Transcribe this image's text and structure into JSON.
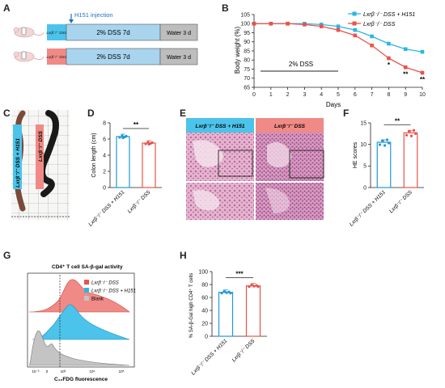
{
  "panels": {
    "A": "A",
    "B": "B",
    "C": "C",
    "D": "D",
    "E": "E",
    "F": "F",
    "G": "G",
    "H": "H"
  },
  "colors": {
    "cyan": "#29b6e6",
    "red": "#e8534a",
    "pink_fill": "#f08a86",
    "cyan_fill": "#4cc3ea",
    "grey_fill": "#c4c4c4",
    "bar_cyan": "#1f9ad6",
    "bar_red": "#e8534a",
    "box_blue": "#a8d4ee",
    "water_gray": "#bdbdbd"
  },
  "panelA": {
    "injection": "H151 injection",
    "row1_tag": "Lxrβ⁻/⁻ DSS",
    "row2_tag": "Lxrβ⁻/⁻ DSS",
    "dss_label": "2% DSS 7d",
    "water_label": "Water 3 d"
  },
  "chart_data": [
    {
      "type": "line",
      "panel": "B",
      "xlabel": "Days",
      "ylabel": "Body weight (%)",
      "x": [
        0,
        1,
        2,
        3,
        4,
        5,
        6,
        7,
        8,
        9,
        10
      ],
      "ylim": [
        65,
        105
      ],
      "yticks": [
        65,
        70,
        75,
        80,
        85,
        90,
        95,
        100,
        105
      ],
      "annotation": "2% DSS",
      "significance": [
        {
          "x": 8,
          "label": "*"
        },
        {
          "x": 9,
          "label": "**"
        },
        {
          "x": 10,
          "label": "**"
        }
      ],
      "series": [
        {
          "name": "Lxrβ⁻/⁻ DSS + H151",
          "color": "#29b6e6",
          "values": [
            100,
            100,
            100,
            100,
            99.5,
            98.5,
            96.5,
            93,
            89,
            86,
            84.5
          ]
        },
        {
          "name": "Lxrβ⁻/⁻ DSS",
          "color": "#e8534a",
          "values": [
            100,
            100,
            100,
            99.5,
            98.5,
            96.5,
            93.5,
            88,
            81,
            76,
            73
          ]
        }
      ]
    },
    {
      "type": "bar",
      "panel": "D",
      "ylabel": "Colon length (cm)",
      "ylim": [
        0,
        8
      ],
      "yticks": [
        0,
        2,
        4,
        6,
        8
      ],
      "categories": [
        "Lxrβ⁻/⁻ DSS + H151",
        "Lxrβ⁻/⁻ DSS"
      ],
      "values": [
        6.3,
        5.5
      ],
      "significance": "**"
    },
    {
      "type": "bar",
      "panel": "F",
      "ylabel": "HE scores",
      "ylim": [
        0,
        15
      ],
      "yticks": [
        0,
        5,
        10,
        15
      ],
      "categories": [
        "Lxrβ⁻/⁻ DSS + H151",
        "Lxrβ⁻/⁻ DSS"
      ],
      "values": [
        10.5,
        12.7
      ],
      "significance": "**"
    },
    {
      "type": "area",
      "panel": "G",
      "title": "CD4⁺ T cell SA-β-gal activity",
      "xlabel": "C₁₂FDG fluorescence",
      "series": [
        {
          "name": "Lxrβ⁻/⁻ DSS",
          "color": "#f08a86"
        },
        {
          "name": "Lxrβ⁻/⁻ DSS + H151",
          "color": "#4cc3ea"
        },
        {
          "name": "Blank",
          "color": "#c4c4c4"
        }
      ]
    },
    {
      "type": "bar",
      "panel": "H",
      "ylabel": "% SA-β-Gal high CD4⁺ T cells",
      "ylim": [
        0,
        100
      ],
      "yticks": [
        0,
        20,
        40,
        60,
        80,
        100
      ],
      "categories": [
        "Lxrβ⁻/⁻ DSS + H151",
        "Lxrβ⁻/⁻ DSS"
      ],
      "values": [
        68,
        78
      ],
      "significance": "***"
    }
  ],
  "panelC": {
    "label_h151": "Lxrβ⁻/⁻ DSS + H151",
    "label_dss": "Lxrβ⁻/⁻ DSS"
  },
  "panelE": {
    "left_header": "Lxrβ⁻/⁻ DSS + H151",
    "right_header": "Lxrβ⁻/⁻ DSS"
  },
  "panelG_ticks": {
    "t1": "10⁻³",
    "t2": "0",
    "t3": "10³",
    "t4": "10⁴",
    "t5": "10⁵"
  }
}
